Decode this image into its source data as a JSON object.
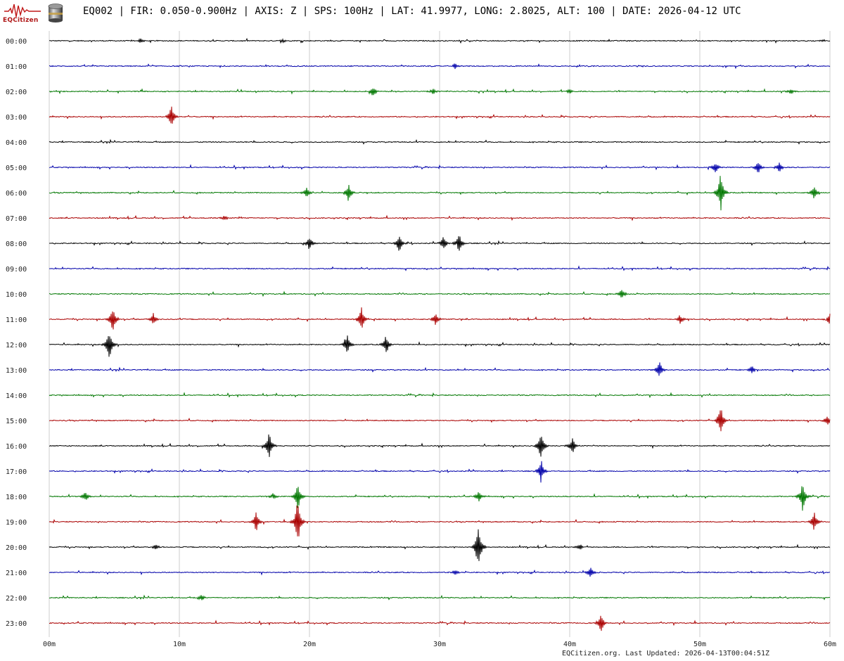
{
  "header": {
    "logo_text": "EQCitizen",
    "title": "EQ002 | FIR: 0.050-0.900Hz | AXIS: Z | SPS: 100Hz | LAT: 41.9977, LONG: 2.8025, ALT: 100 | DATE: 2026-04-12 UTC"
  },
  "footer": {
    "text": "EQCitizen.org. Last Updated: 2026-04-13T00:04:51Z"
  },
  "colors": {
    "cycle": [
      "#000000",
      "#0000aa",
      "#007700",
      "#aa0000"
    ],
    "grid": "#cccccc"
  },
  "chart_data": {
    "type": "helicorder",
    "title": "EQ002 | FIR: 0.050-0.900Hz | AXIS: Z | SPS: 100Hz | LAT: 41.9977, LONG: 2.8025, ALT: 100 | DATE: 2026-04-12 UTC",
    "rows": [
      "00:00",
      "01:00",
      "02:00",
      "03:00",
      "04:00",
      "05:00",
      "06:00",
      "07:00",
      "08:00",
      "09:00",
      "10:00",
      "11:00",
      "12:00",
      "13:00",
      "14:00",
      "15:00",
      "16:00",
      "17:00",
      "18:00",
      "19:00",
      "20:00",
      "21:00",
      "22:00",
      "23:00"
    ],
    "x_ticks": [
      "00m",
      "10m",
      "20m",
      "30m",
      "40m",
      "50m",
      "60m"
    ],
    "xlim": [
      0,
      60
    ],
    "grid": true,
    "events": [
      {
        "row": "00:00",
        "minute": 7.0,
        "amp": 0.25
      },
      {
        "row": "00:00",
        "minute": 18.0,
        "amp": 0.18
      },
      {
        "row": "00:00",
        "minute": 59.5,
        "amp": 0.1
      },
      {
        "row": "01:00",
        "minute": 31.2,
        "amp": 0.3
      },
      {
        "row": "02:00",
        "minute": 24.9,
        "amp": 0.55
      },
      {
        "row": "02:00",
        "minute": 29.5,
        "amp": 0.3
      },
      {
        "row": "02:00",
        "minute": 40.0,
        "amp": 0.28
      },
      {
        "row": "02:00",
        "minute": 57.0,
        "amp": 0.3
      },
      {
        "row": "03:00",
        "minute": 9.4,
        "amp": 1.1
      },
      {
        "row": "05:00",
        "minute": 51.2,
        "amp": 0.6
      },
      {
        "row": "05:00",
        "minute": 54.5,
        "amp": 0.75
      },
      {
        "row": "05:00",
        "minute": 56.1,
        "amp": 0.6
      },
      {
        "row": "06:00",
        "minute": 19.8,
        "amp": 0.6
      },
      {
        "row": "06:00",
        "minute": 23.0,
        "amp": 0.9
      },
      {
        "row": "06:00",
        "minute": 51.6,
        "amp": 2.0
      },
      {
        "row": "06:00",
        "minute": 58.8,
        "amp": 0.7
      },
      {
        "row": "07:00",
        "minute": 13.5,
        "amp": 0.3
      },
      {
        "row": "08:00",
        "minute": 20.0,
        "amp": 0.7
      },
      {
        "row": "08:00",
        "minute": 26.9,
        "amp": 1.0
      },
      {
        "row": "08:00",
        "minute": 30.3,
        "amp": 0.75
      },
      {
        "row": "08:00",
        "minute": 31.5,
        "amp": 1.0
      },
      {
        "row": "10:00",
        "minute": 44.0,
        "amp": 0.5
      },
      {
        "row": "11:00",
        "minute": 4.9,
        "amp": 1.3
      },
      {
        "row": "11:00",
        "minute": 8.0,
        "amp": 0.6
      },
      {
        "row": "11:00",
        "minute": 24.0,
        "amp": 1.3
      },
      {
        "row": "11:00",
        "minute": 29.7,
        "amp": 0.7
      },
      {
        "row": "11:00",
        "minute": 48.5,
        "amp": 0.5
      },
      {
        "row": "11:00",
        "minute": 60.0,
        "amp": 0.8
      },
      {
        "row": "12:00",
        "minute": 4.6,
        "amp": 1.7
      },
      {
        "row": "12:00",
        "minute": 22.9,
        "amp": 1.2
      },
      {
        "row": "12:00",
        "minute": 25.9,
        "amp": 1.0
      },
      {
        "row": "13:00",
        "minute": 46.9,
        "amp": 0.9
      },
      {
        "row": "13:00",
        "minute": 54.0,
        "amp": 0.5
      },
      {
        "row": "15:00",
        "minute": 51.6,
        "amp": 1.6
      },
      {
        "row": "15:00",
        "minute": 59.8,
        "amp": 0.5
      },
      {
        "row": "16:00",
        "minute": 16.9,
        "amp": 1.4
      },
      {
        "row": "16:00",
        "minute": 37.8,
        "amp": 1.6
      },
      {
        "row": "16:00",
        "minute": 40.2,
        "amp": 0.9
      },
      {
        "row": "17:00",
        "minute": 37.8,
        "amp": 1.2
      },
      {
        "row": "18:00",
        "minute": 2.8,
        "amp": 0.6
      },
      {
        "row": "18:00",
        "minute": 17.2,
        "amp": 0.4
      },
      {
        "row": "18:00",
        "minute": 19.1,
        "amp": 1.5
      },
      {
        "row": "18:00",
        "minute": 33.0,
        "amp": 0.6
      },
      {
        "row": "18:00",
        "minute": 57.9,
        "amp": 1.5
      },
      {
        "row": "19:00",
        "minute": 15.9,
        "amp": 1.0
      },
      {
        "row": "19:00",
        "minute": 19.1,
        "amp": 2.5
      },
      {
        "row": "19:00",
        "minute": 58.8,
        "amp": 1.0
      },
      {
        "row": "20:00",
        "minute": 8.2,
        "amp": 0.3
      },
      {
        "row": "20:00",
        "minute": 33.0,
        "amp": 2.5
      },
      {
        "row": "20:00",
        "minute": 40.8,
        "amp": 0.3
      },
      {
        "row": "21:00",
        "minute": 31.2,
        "amp": 0.25
      },
      {
        "row": "21:00",
        "minute": 41.6,
        "amp": 0.55
      },
      {
        "row": "22:00",
        "minute": 11.7,
        "amp": 0.35
      },
      {
        "row": "23:00",
        "minute": 42.4,
        "amp": 1.0
      }
    ]
  }
}
